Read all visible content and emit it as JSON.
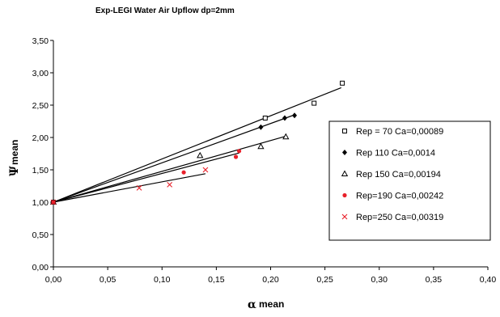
{
  "chart_data": {
    "type": "scatter",
    "title": "Exp-LEGI Water Air Upflow dp=2mm",
    "xlabel": {
      "symbol": "α",
      "text": "mean"
    },
    "ylabel": {
      "symbol": "Ψ",
      "text": "mean"
    },
    "xlim": [
      0,
      0.4
    ],
    "ylim": [
      0,
      3.5
    ],
    "xticks": [
      "0,00",
      "0,05",
      "0,10",
      "0,15",
      "0,20",
      "0,25",
      "0,30",
      "0,35",
      "0,40"
    ],
    "yticks": [
      "0,00",
      "0,50",
      "1,00",
      "1,50",
      "2,00",
      "2,50",
      "3,00",
      "3,50"
    ],
    "grid": false,
    "legend_position": "right",
    "series": [
      {
        "name": "Rep = 70 Ca=0,00089",
        "marker": "open-square",
        "color": "#000000",
        "points": [
          [
            0,
            1.0
          ],
          [
            0.195,
            2.3
          ],
          [
            0.24,
            2.53
          ],
          [
            0.266,
            2.84
          ]
        ],
        "fit_line": [
          [
            0,
            1.0
          ],
          [
            0.265,
            2.77
          ]
        ]
      },
      {
        "name": "Rep 110 Ca=0,0014",
        "marker": "filled-diamond",
        "color": "#000000",
        "points": [
          [
            0,
            1.0
          ],
          [
            0.191,
            2.16
          ],
          [
            0.213,
            2.3
          ],
          [
            0.222,
            2.34
          ]
        ],
        "fit_line": [
          [
            0,
            1.0
          ],
          [
            0.222,
            2.35
          ]
        ]
      },
      {
        "name": "Rep 150 Ca=0,00194",
        "marker": "open-triangle",
        "color": "#000000",
        "points": [
          [
            0,
            1.0
          ],
          [
            0.135,
            1.72
          ],
          [
            0.191,
            1.86
          ],
          [
            0.214,
            2.01
          ]
        ],
        "fit_line": [
          [
            0,
            1.0
          ],
          [
            0.214,
            2.02
          ]
        ]
      },
      {
        "name": "Rep=190 Ca=0,00242",
        "marker": "filled-circle",
        "color": "#e8202a",
        "points": [
          [
            0,
            1.0
          ],
          [
            0.12,
            1.46
          ],
          [
            0.168,
            1.7
          ],
          [
            0.171,
            1.79
          ]
        ],
        "fit_line": [
          [
            0,
            1.0
          ],
          [
            0.171,
            1.76
          ]
        ]
      },
      {
        "name": "Rep=250 Ca=0,00319",
        "marker": "cross",
        "color": "#e8202a",
        "points": [
          [
            0,
            1.0
          ],
          [
            0.079,
            1.22
          ],
          [
            0.107,
            1.27
          ],
          [
            0.14,
            1.5
          ]
        ],
        "fit_line": [
          [
            0,
            1.0
          ],
          [
            0.14,
            1.44
          ]
        ]
      }
    ]
  }
}
